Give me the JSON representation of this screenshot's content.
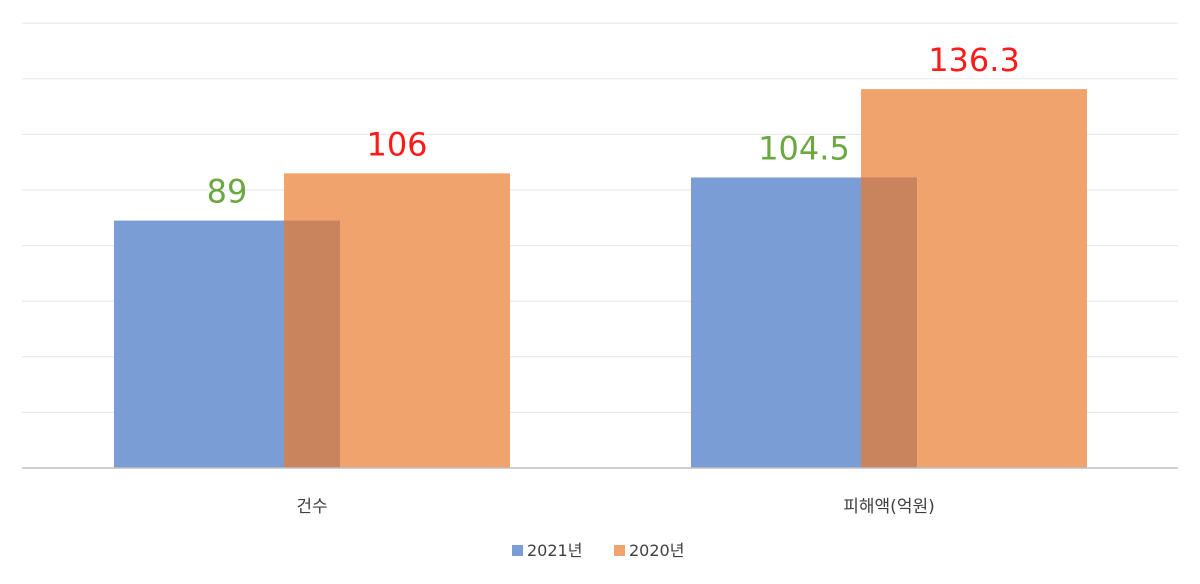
{
  "chart_data": {
    "type": "bar",
    "categories": [
      "건수",
      "피해액(억원)"
    ],
    "series": [
      {
        "name": "2021년",
        "values": [
          89,
          104.5
        ],
        "color": "#7b9dd6",
        "label_color": "#6ca842"
      },
      {
        "name": "2020년",
        "values": [
          106,
          136.3
        ],
        "color": "#f0a36c",
        "label_color": "#ff1a1a"
      }
    ],
    "ylim": [
      0,
      160
    ],
    "grid": true,
    "legend": "bottom-center",
    "overlap_color": "#c9845e"
  }
}
